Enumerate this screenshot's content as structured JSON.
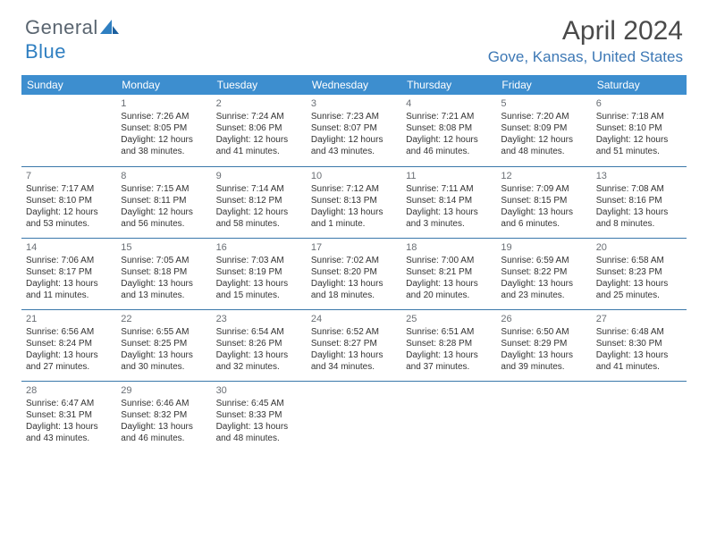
{
  "logo": {
    "word1": "General",
    "word2": "Blue"
  },
  "title": "April 2024",
  "location": "Gove, Kansas, United States",
  "day_headers": [
    "Sunday",
    "Monday",
    "Tuesday",
    "Wednesday",
    "Thursday",
    "Friday",
    "Saturday"
  ],
  "colors": {
    "header_bg": "#3d8ecf",
    "header_text": "#ffffff",
    "rule": "#3a78aa",
    "location_text": "#3d78b5",
    "logo_gray": "#5a6570",
    "logo_blue": "#2f7fc1",
    "body_text": "#333333",
    "daynum_text": "#6a6f75"
  },
  "typography": {
    "title_fontsize": 30,
    "location_fontsize": 17,
    "header_fontsize": 12,
    "cell_fontsize": 10,
    "logo_fontsize": 22
  },
  "layout": {
    "rows": 5,
    "cols": 7,
    "leading_blanks": 1
  },
  "days": [
    {
      "n": "1",
      "sr": "7:26 AM",
      "ss": "8:05 PM",
      "d1": "12 hours",
      "d2": "and 38 minutes."
    },
    {
      "n": "2",
      "sr": "7:24 AM",
      "ss": "8:06 PM",
      "d1": "12 hours",
      "d2": "and 41 minutes."
    },
    {
      "n": "3",
      "sr": "7:23 AM",
      "ss": "8:07 PM",
      "d1": "12 hours",
      "d2": "and 43 minutes."
    },
    {
      "n": "4",
      "sr": "7:21 AM",
      "ss": "8:08 PM",
      "d1": "12 hours",
      "d2": "and 46 minutes."
    },
    {
      "n": "5",
      "sr": "7:20 AM",
      "ss": "8:09 PM",
      "d1": "12 hours",
      "d2": "and 48 minutes."
    },
    {
      "n": "6",
      "sr": "7:18 AM",
      "ss": "8:10 PM",
      "d1": "12 hours",
      "d2": "and 51 minutes."
    },
    {
      "n": "7",
      "sr": "7:17 AM",
      "ss": "8:10 PM",
      "d1": "12 hours",
      "d2": "and 53 minutes."
    },
    {
      "n": "8",
      "sr": "7:15 AM",
      "ss": "8:11 PM",
      "d1": "12 hours",
      "d2": "and 56 minutes."
    },
    {
      "n": "9",
      "sr": "7:14 AM",
      "ss": "8:12 PM",
      "d1": "12 hours",
      "d2": "and 58 minutes."
    },
    {
      "n": "10",
      "sr": "7:12 AM",
      "ss": "8:13 PM",
      "d1": "13 hours",
      "d2": "and 1 minute."
    },
    {
      "n": "11",
      "sr": "7:11 AM",
      "ss": "8:14 PM",
      "d1": "13 hours",
      "d2": "and 3 minutes."
    },
    {
      "n": "12",
      "sr": "7:09 AM",
      "ss": "8:15 PM",
      "d1": "13 hours",
      "d2": "and 6 minutes."
    },
    {
      "n": "13",
      "sr": "7:08 AM",
      "ss": "8:16 PM",
      "d1": "13 hours",
      "d2": "and 8 minutes."
    },
    {
      "n": "14",
      "sr": "7:06 AM",
      "ss": "8:17 PM",
      "d1": "13 hours",
      "d2": "and 11 minutes."
    },
    {
      "n": "15",
      "sr": "7:05 AM",
      "ss": "8:18 PM",
      "d1": "13 hours",
      "d2": "and 13 minutes."
    },
    {
      "n": "16",
      "sr": "7:03 AM",
      "ss": "8:19 PM",
      "d1": "13 hours",
      "d2": "and 15 minutes."
    },
    {
      "n": "17",
      "sr": "7:02 AM",
      "ss": "8:20 PM",
      "d1": "13 hours",
      "d2": "and 18 minutes."
    },
    {
      "n": "18",
      "sr": "7:00 AM",
      "ss": "8:21 PM",
      "d1": "13 hours",
      "d2": "and 20 minutes."
    },
    {
      "n": "19",
      "sr": "6:59 AM",
      "ss": "8:22 PM",
      "d1": "13 hours",
      "d2": "and 23 minutes."
    },
    {
      "n": "20",
      "sr": "6:58 AM",
      "ss": "8:23 PM",
      "d1": "13 hours",
      "d2": "and 25 minutes."
    },
    {
      "n": "21",
      "sr": "6:56 AM",
      "ss": "8:24 PM",
      "d1": "13 hours",
      "d2": "and 27 minutes."
    },
    {
      "n": "22",
      "sr": "6:55 AM",
      "ss": "8:25 PM",
      "d1": "13 hours",
      "d2": "and 30 minutes."
    },
    {
      "n": "23",
      "sr": "6:54 AM",
      "ss": "8:26 PM",
      "d1": "13 hours",
      "d2": "and 32 minutes."
    },
    {
      "n": "24",
      "sr": "6:52 AM",
      "ss": "8:27 PM",
      "d1": "13 hours",
      "d2": "and 34 minutes."
    },
    {
      "n": "25",
      "sr": "6:51 AM",
      "ss": "8:28 PM",
      "d1": "13 hours",
      "d2": "and 37 minutes."
    },
    {
      "n": "26",
      "sr": "6:50 AM",
      "ss": "8:29 PM",
      "d1": "13 hours",
      "d2": "and 39 minutes."
    },
    {
      "n": "27",
      "sr": "6:48 AM",
      "ss": "8:30 PM",
      "d1": "13 hours",
      "d2": "and 41 minutes."
    },
    {
      "n": "28",
      "sr": "6:47 AM",
      "ss": "8:31 PM",
      "d1": "13 hours",
      "d2": "and 43 minutes."
    },
    {
      "n": "29",
      "sr": "6:46 AM",
      "ss": "8:32 PM",
      "d1": "13 hours",
      "d2": "and 46 minutes."
    },
    {
      "n": "30",
      "sr": "6:45 AM",
      "ss": "8:33 PM",
      "d1": "13 hours",
      "d2": "and 48 minutes."
    }
  ],
  "labels": {
    "sunrise": "Sunrise:",
    "sunset": "Sunset:",
    "daylight": "Daylight:"
  }
}
